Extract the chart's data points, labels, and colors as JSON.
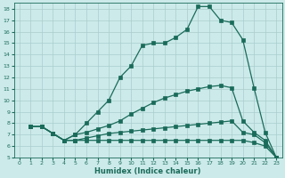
{
  "xlabel": "Humidex (Indice chaleur)",
  "bg_color": "#cceaea",
  "grid_color": "#aacccc",
  "line_color": "#1a6b5a",
  "xlim": [
    -0.5,
    23.5
  ],
  "ylim": [
    5,
    18.5
  ],
  "xticks": [
    0,
    1,
    2,
    3,
    4,
    5,
    6,
    7,
    8,
    9,
    10,
    11,
    12,
    13,
    14,
    15,
    16,
    17,
    18,
    19,
    20,
    21,
    22,
    23
  ],
  "yticks": [
    5,
    6,
    7,
    8,
    9,
    10,
    11,
    12,
    13,
    14,
    15,
    16,
    17,
    18
  ],
  "line1_x": [
    1,
    2,
    3,
    4,
    5,
    6,
    7,
    8,
    9,
    10,
    11,
    12,
    13,
    14,
    15,
    16,
    17,
    18,
    19,
    20,
    21,
    22,
    23
  ],
  "line1_y": [
    7.7,
    7.7,
    7.1,
    6.5,
    7.0,
    8.0,
    9.0,
    10.0,
    12.0,
    13.0,
    14.8,
    15.0,
    15.0,
    15.5,
    16.2,
    18.2,
    18.2,
    17.0,
    16.8,
    15.3,
    11.1,
    7.2,
    5.0
  ],
  "line2_x": [
    1,
    2,
    3,
    4,
    5,
    6,
    7,
    8,
    9,
    10,
    11,
    12,
    13,
    14,
    15,
    16,
    17,
    18,
    19,
    20,
    21,
    22,
    23
  ],
  "line2_y": [
    7.7,
    7.7,
    7.1,
    6.5,
    7.0,
    7.2,
    7.5,
    7.8,
    8.2,
    8.8,
    9.3,
    9.8,
    10.2,
    10.5,
    10.8,
    11.0,
    11.2,
    11.3,
    11.1,
    8.2,
    7.2,
    6.5,
    5.0
  ],
  "line3_x": [
    1,
    2,
    3,
    4,
    5,
    6,
    7,
    8,
    9,
    10,
    11,
    12,
    13,
    14,
    15,
    16,
    17,
    18,
    19,
    20,
    21,
    22,
    23
  ],
  "line3_y": [
    7.7,
    7.7,
    7.1,
    6.5,
    6.5,
    6.7,
    6.9,
    7.1,
    7.2,
    7.3,
    7.4,
    7.5,
    7.6,
    7.7,
    7.8,
    7.9,
    8.0,
    8.1,
    8.2,
    7.2,
    7.0,
    6.3,
    5.0
  ],
  "line4_x": [
    1,
    2,
    3,
    4,
    5,
    6,
    7,
    8,
    9,
    10,
    11,
    12,
    13,
    14,
    15,
    16,
    17,
    18,
    19,
    20,
    21,
    22,
    23
  ],
  "line4_y": [
    7.7,
    7.7,
    7.1,
    6.5,
    6.5,
    6.5,
    6.5,
    6.5,
    6.5,
    6.5,
    6.5,
    6.5,
    6.5,
    6.5,
    6.5,
    6.5,
    6.5,
    6.5,
    6.5,
    6.5,
    6.3,
    6.0,
    5.0
  ]
}
